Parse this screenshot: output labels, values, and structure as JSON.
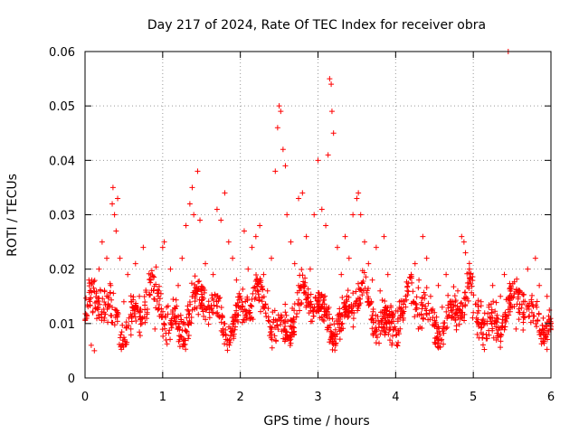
{
  "chart_data": {
    "type": "scatter",
    "title": "Day 217 of 2024, Rate Of TEC Index for receiver obra",
    "xlabel": "GPS time / hours",
    "ylabel": "ROTI / TECUs",
    "xlim": [
      0,
      6
    ],
    "ylim": [
      0,
      0.06
    ],
    "xticks": [
      "0",
      "1",
      "2",
      "3",
      "4",
      "5",
      "6"
    ],
    "yticks": [
      "0",
      "0.01",
      "0.02",
      "0.03",
      "0.04",
      "0.05",
      "0.06"
    ],
    "grid": true,
    "marker": "+",
    "color": "#ff0000",
    "series": [
      {
        "name": "ROTI",
        "points": [
          [
            0.05,
            0.018
          ],
          [
            0.08,
            0.006
          ],
          [
            0.1,
            0.012
          ],
          [
            0.12,
            0.005
          ],
          [
            0.15,
            0.014
          ],
          [
            0.18,
            0.02
          ],
          [
            0.2,
            0.016
          ],
          [
            0.22,
            0.025
          ],
          [
            0.25,
            0.011
          ],
          [
            0.28,
            0.022
          ],
          [
            0.3,
            0.013
          ],
          [
            0.33,
            0.017
          ],
          [
            0.35,
            0.032
          ],
          [
            0.36,
            0.035
          ],
          [
            0.38,
            0.03
          ],
          [
            0.4,
            0.027
          ],
          [
            0.42,
            0.033
          ],
          [
            0.45,
            0.022
          ],
          [
            0.48,
            0.006
          ],
          [
            0.5,
            0.014
          ],
          [
            0.55,
            0.019
          ],
          [
            0.6,
            0.011
          ],
          [
            0.65,
            0.021
          ],
          [
            0.7,
            0.015
          ],
          [
            0.75,
            0.024
          ],
          [
            0.8,
            0.012
          ],
          [
            0.85,
            0.018
          ],
          [
            0.9,
            0.009
          ],
          [
            0.95,
            0.016
          ],
          [
            1.0,
            0.024
          ],
          [
            1.02,
            0.025
          ],
          [
            1.05,
            0.013
          ],
          [
            1.1,
            0.02
          ],
          [
            1.15,
            0.011
          ],
          [
            1.2,
            0.017
          ],
          [
            1.25,
            0.022
          ],
          [
            1.3,
            0.028
          ],
          [
            1.35,
            0.032
          ],
          [
            1.38,
            0.035
          ],
          [
            1.4,
            0.03
          ],
          [
            1.45,
            0.038
          ],
          [
            1.48,
            0.029
          ],
          [
            1.5,
            0.016
          ],
          [
            1.55,
            0.021
          ],
          [
            1.6,
            0.013
          ],
          [
            1.65,
            0.019
          ],
          [
            1.7,
            0.031
          ],
          [
            1.75,
            0.029
          ],
          [
            1.8,
            0.034
          ],
          [
            1.85,
            0.025
          ],
          [
            1.9,
            0.022
          ],
          [
            1.95,
            0.018
          ],
          [
            2.0,
            0.015
          ],
          [
            2.05,
            0.027
          ],
          [
            2.1,
            0.02
          ],
          [
            2.15,
            0.024
          ],
          [
            2.2,
            0.026
          ],
          [
            2.25,
            0.028
          ],
          [
            2.3,
            0.019
          ],
          [
            2.35,
            0.016
          ],
          [
            2.4,
            0.022
          ],
          [
            2.45,
            0.038
          ],
          [
            2.48,
            0.046
          ],
          [
            2.5,
            0.05
          ],
          [
            2.52,
            0.049
          ],
          [
            2.55,
            0.042
          ],
          [
            2.58,
            0.039
          ],
          [
            2.6,
            0.03
          ],
          [
            2.65,
            0.025
          ],
          [
            2.7,
            0.021
          ],
          [
            2.75,
            0.033
          ],
          [
            2.8,
            0.034
          ],
          [
            2.85,
            0.026
          ],
          [
            2.9,
            0.02
          ],
          [
            2.95,
            0.03
          ],
          [
            3.0,
            0.04
          ],
          [
            3.05,
            0.031
          ],
          [
            3.1,
            0.028
          ],
          [
            3.13,
            0.041
          ],
          [
            3.15,
            0.055
          ],
          [
            3.17,
            0.054
          ],
          [
            3.18,
            0.049
          ],
          [
            3.2,
            0.045
          ],
          [
            3.25,
            0.024
          ],
          [
            3.3,
            0.019
          ],
          [
            3.35,
            0.026
          ],
          [
            3.4,
            0.022
          ],
          [
            3.45,
            0.03
          ],
          [
            3.5,
            0.033
          ],
          [
            3.52,
            0.034
          ],
          [
            3.55,
            0.03
          ],
          [
            3.6,
            0.025
          ],
          [
            3.65,
            0.021
          ],
          [
            3.7,
            0.018
          ],
          [
            3.75,
            0.024
          ],
          [
            3.8,
            0.016
          ],
          [
            3.85,
            0.026
          ],
          [
            3.9,
            0.019
          ],
          [
            3.95,
            0.012
          ],
          [
            4.0,
            0.009
          ],
          [
            4.05,
            0.014
          ],
          [
            4.1,
            0.011
          ],
          [
            4.15,
            0.016
          ],
          [
            4.2,
            0.019
          ],
          [
            4.25,
            0.021
          ],
          [
            4.3,
            0.018
          ],
          [
            4.35,
            0.026
          ],
          [
            4.4,
            0.022
          ],
          [
            4.45,
            0.015
          ],
          [
            4.5,
            0.012
          ],
          [
            4.55,
            0.017
          ],
          [
            4.6,
            0.013
          ],
          [
            4.65,
            0.019
          ],
          [
            4.7,
            0.014
          ],
          [
            4.75,
            0.011
          ],
          [
            4.8,
            0.016
          ],
          [
            4.85,
            0.026
          ],
          [
            4.88,
            0.025
          ],
          [
            4.9,
            0.023
          ],
          [
            4.95,
            0.02
          ],
          [
            5.0,
            0.012
          ],
          [
            5.05,
            0.008
          ],
          [
            5.1,
            0.014
          ],
          [
            5.15,
            0.01
          ],
          [
            5.2,
            0.013
          ],
          [
            5.25,
            0.017
          ],
          [
            5.3,
            0.011
          ],
          [
            5.35,
            0.015
          ],
          [
            5.4,
            0.019
          ],
          [
            5.45,
            0.06
          ],
          [
            5.5,
            0.013
          ],
          [
            5.55,
            0.009
          ],
          [
            5.6,
            0.016
          ],
          [
            5.65,
            0.012
          ],
          [
            5.7,
            0.02
          ],
          [
            5.75,
            0.014
          ],
          [
            5.8,
            0.022
          ],
          [
            5.85,
            0.017
          ],
          [
            5.9,
            0.011
          ],
          [
            5.95,
            0.015
          ]
        ]
      }
    ],
    "dense_band": {
      "low": 0.005,
      "high": 0.019,
      "count": 1400,
      "seed": 217
    }
  }
}
